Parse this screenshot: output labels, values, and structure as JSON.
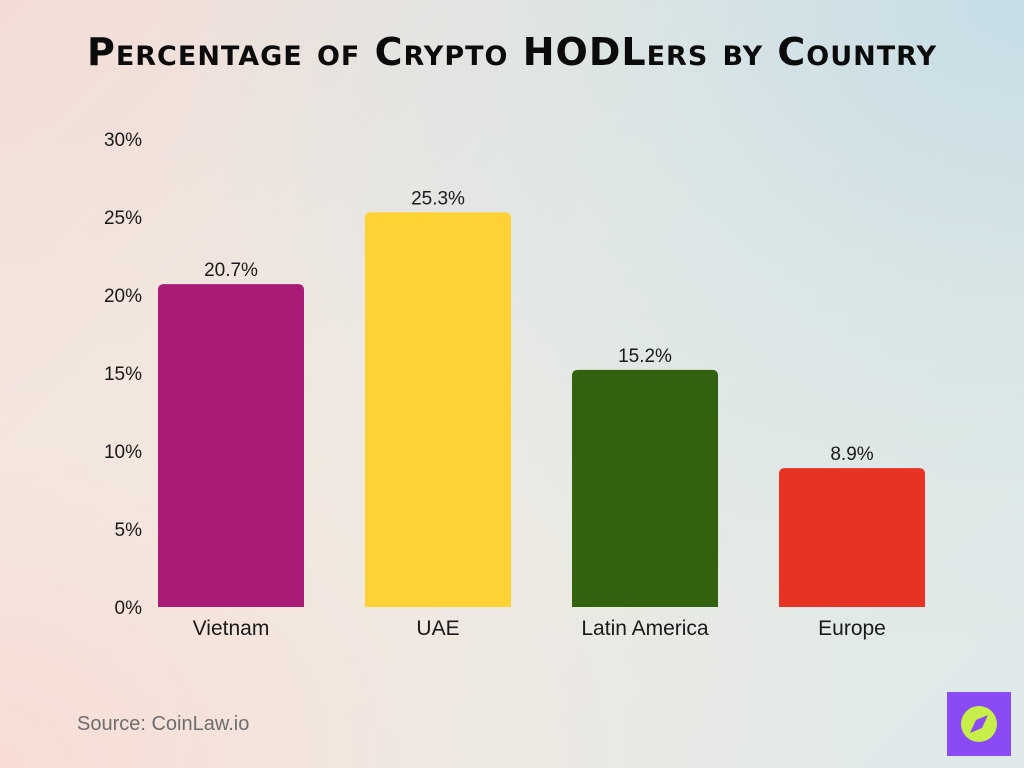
{
  "colors": {
    "accent_logo": "#8a4bf6",
    "logo_mark": "#c8ee4a"
  },
  "source": "Source: CoinLaw.io",
  "logo_icon": "compass-icon",
  "chart_data": {
    "type": "bar",
    "title": "Percentage of Crypto HODLers by Country",
    "xlabel": "",
    "ylabel": "",
    "categories": [
      "Vietnam",
      "UAE",
      "Latin America",
      "Europe"
    ],
    "values": [
      20.7,
      25.3,
      15.2,
      8.9
    ],
    "value_labels": [
      "20.7%",
      "25.3%",
      "15.2%",
      "8.9%"
    ],
    "colors": [
      "#a81c77",
      "#fed134",
      "#32610f",
      "#e83223"
    ],
    "ylim": [
      0,
      30
    ],
    "yticks": [
      0,
      5,
      10,
      15,
      20,
      25,
      30
    ],
    "ytick_labels": [
      "0%",
      "5%",
      "10%",
      "15%",
      "20%",
      "25%",
      "30%"
    ],
    "grid": false,
    "legend": "none"
  }
}
